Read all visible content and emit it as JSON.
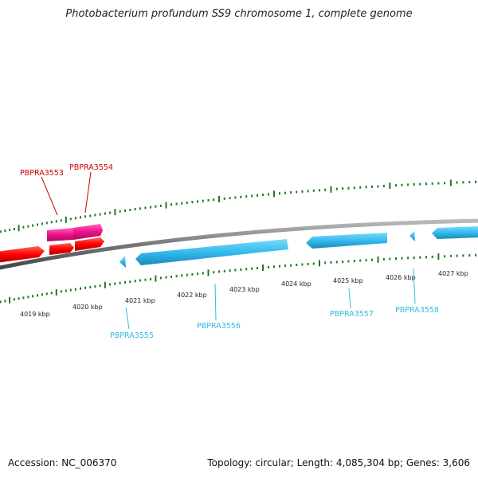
{
  "title": "Photobacterium profundum SS9 chromosome 1, complete genome",
  "accession": "Accession: NC_006370",
  "summary": "Topology: circular; Length: 4,085,304 bp; Genes: 3,606",
  "colors": {
    "forward_gene": "#ff0000",
    "forward_gene_alt": "#ee1188",
    "reverse_gene": "#33bbee",
    "backbone": "#777777",
    "tick": "#227722",
    "forward_label": "#cc0000",
    "reverse_label": "#33bbdd"
  },
  "ticks": {
    "kbp_labels": [
      "4019 kbp",
      "4020 kbp",
      "4021 kbp",
      "4022 kbp",
      "4023 kbp",
      "4024 kbp",
      "4025 kbp",
      "4026 kbp",
      "4027 kbp"
    ]
  },
  "genes": {
    "forward": [
      {
        "label": "PBPRA3553"
      },
      {
        "label": "PBPRA3554"
      }
    ],
    "reverse": [
      {
        "label": "PBPRA3555"
      },
      {
        "label": "PBPRA3556"
      },
      {
        "label": "PBPRA3557"
      },
      {
        "label": "PBPRA3558"
      }
    ]
  }
}
